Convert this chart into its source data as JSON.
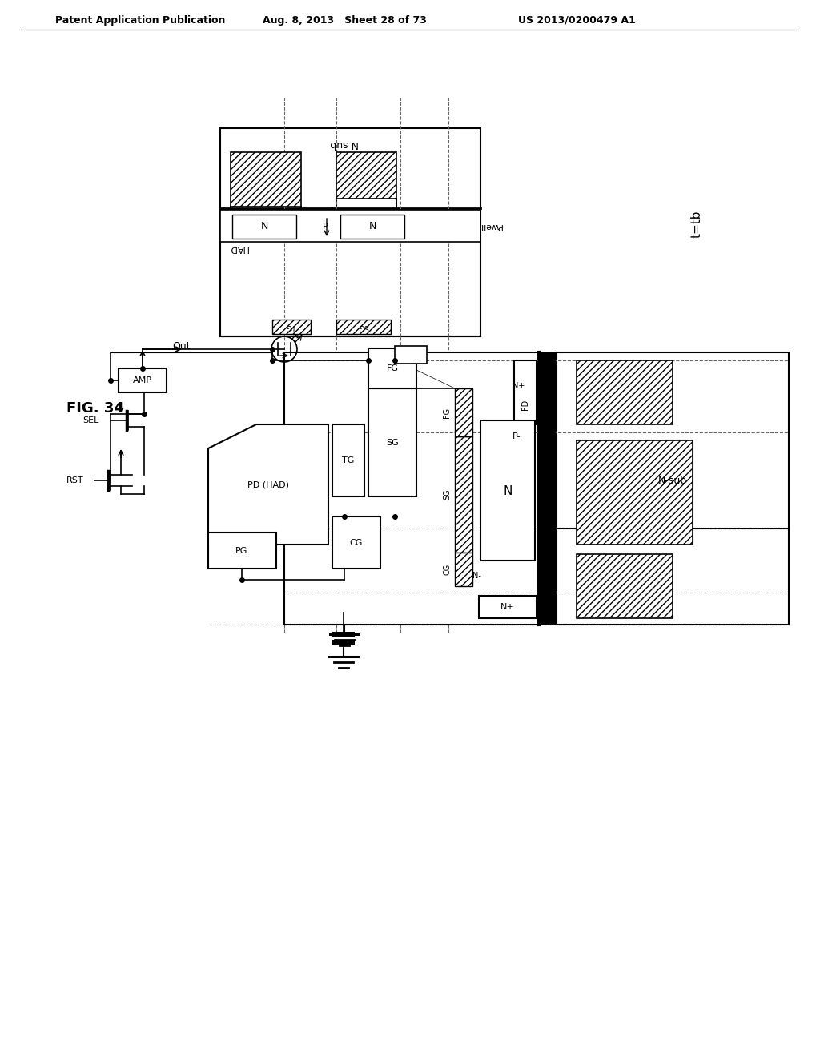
{
  "header_left": "Patent Application Publication",
  "header_mid": "Aug. 8, 2013   Sheet 28 of 73",
  "header_right": "US 2013/0200479 A1",
  "fig_label": "FIG. 34",
  "t_label": "t=tb",
  "background": "#ffffff"
}
